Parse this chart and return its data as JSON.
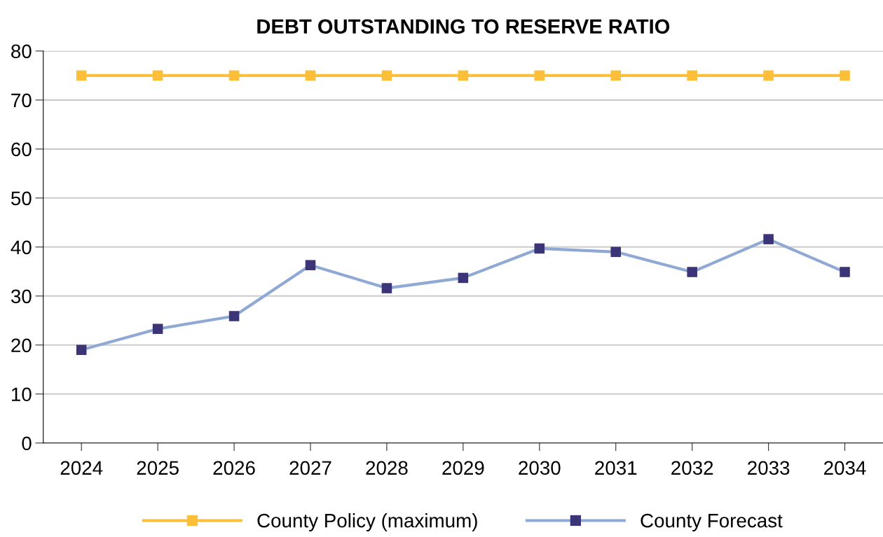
{
  "chart_data": {
    "type": "line",
    "title": "DEBT OUTSTANDING TO RESERVE RATIO",
    "categories": [
      "2024",
      "2025",
      "2026",
      "2027",
      "2028",
      "2029",
      "2030",
      "2031",
      "2032",
      "2033",
      "2034"
    ],
    "series": [
      {
        "name": "County Policy (maximum)",
        "color": "#fbbf3a",
        "values": [
          75,
          75,
          75,
          75,
          75,
          75,
          75,
          75,
          75,
          75,
          75
        ]
      },
      {
        "name": "County Forecast",
        "color": "#8fa8d4",
        "colors": [
          "#3b3578",
          "#3b3578",
          "#3b3578",
          "#3b3578",
          "#3b3578",
          "#3b3578",
          "#3b3578",
          "#3b3578",
          "#3b3578",
          "#3b3578",
          "#3b3578"
        ],
        "values": [
          19.0,
          23.3,
          25.9,
          36.3,
          31.6,
          33.7,
          39.7,
          39.0,
          34.9,
          41.6,
          34.9
        ]
      }
    ],
    "ylim": [
      0,
      80
    ],
    "yticks": [
      0,
      10,
      20,
      30,
      40,
      50,
      60,
      70,
      80
    ],
    "grid": "y",
    "legend": "bottom",
    "marker": "square",
    "line_style": "solid"
  }
}
